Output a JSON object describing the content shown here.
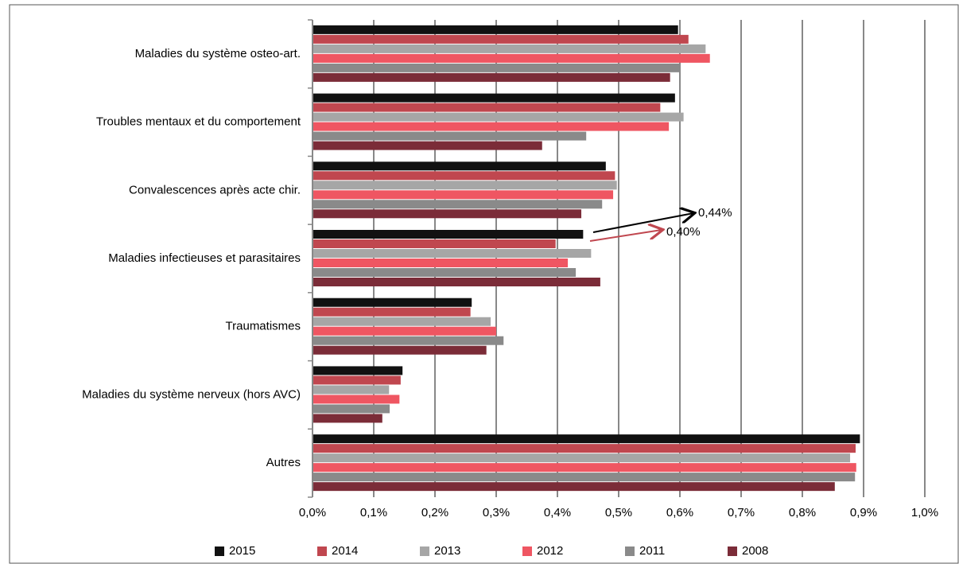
{
  "chart_data": {
    "type": "barh",
    "categories": [
      "Maladies du système osteo-art.",
      "Troubles mentaux et du comportement",
      "Convalescences après acte chir.",
      "Maladies infectieuses et parasitaires",
      "Traumatismes",
      "Maladies du système nerveux (hors AVC)",
      "Autres"
    ],
    "series": [
      {
        "name": "2015",
        "color": "#111111",
        "values": [
          0.597,
          0.592,
          0.479,
          0.442,
          0.26,
          0.147,
          0.894
        ]
      },
      {
        "name": "2014",
        "color": "#c0474f",
        "values": [
          0.614,
          0.568,
          0.494,
          0.397,
          0.258,
          0.144,
          0.887
        ]
      },
      {
        "name": "2013",
        "color": "#a6a6a6",
        "values": [
          0.642,
          0.606,
          0.497,
          0.455,
          0.291,
          0.125,
          0.878
        ]
      },
      {
        "name": "2012",
        "color": "#ef5662",
        "values": [
          0.649,
          0.582,
          0.491,
          0.417,
          0.3,
          0.142,
          0.888
        ]
      },
      {
        "name": "2011",
        "color": "#8a8a8a",
        "values": [
          0.6,
          0.447,
          0.473,
          0.43,
          0.312,
          0.126,
          0.886
        ]
      },
      {
        "name": "2008",
        "color": "#7b2c38",
        "values": [
          0.584,
          0.375,
          0.439,
          0.47,
          0.284,
          0.114,
          0.853
        ]
      }
    ],
    "xlim": [
      0,
      1
    ],
    "xticks": [
      {
        "value": 0,
        "label": "0,0%"
      },
      {
        "value": 0.1,
        "label": "0,1%"
      },
      {
        "value": 0.2,
        "label": "0,2%"
      },
      {
        "value": 0.3,
        "label": "0,3%"
      },
      {
        "value": 0.4,
        "label": "0,4%"
      },
      {
        "value": 0.5,
        "label": "0,5%"
      },
      {
        "value": 0.6,
        "label": "0,6%"
      },
      {
        "value": 0.7,
        "label": "0,7%"
      },
      {
        "value": 0.8,
        "label": "0,8%"
      },
      {
        "value": 0.9,
        "label": "0,9%"
      },
      {
        "value": 1,
        "label": "1,0%"
      }
    ],
    "grid": true,
    "legend": "bottom",
    "annotations": [
      {
        "text": "0,44%"
      },
      {
        "text": "0,40%"
      }
    ]
  }
}
